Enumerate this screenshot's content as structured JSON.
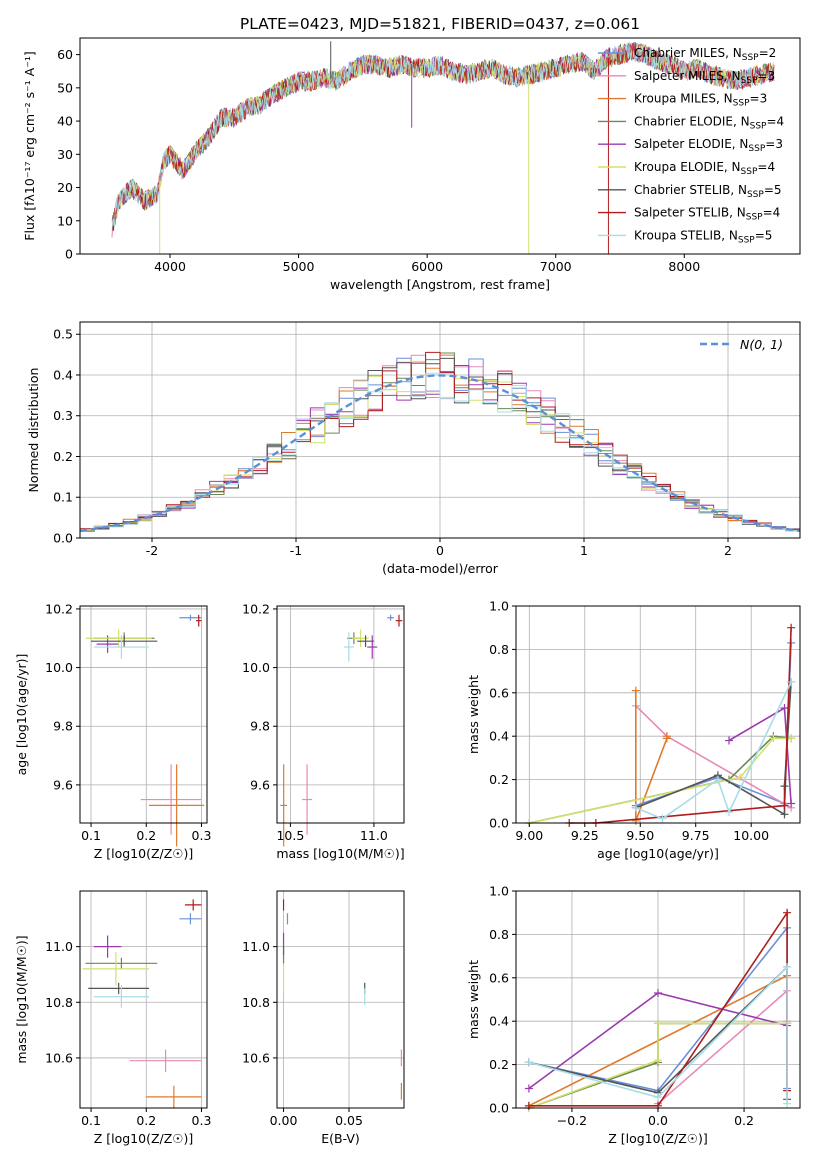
{
  "title": "PLATE=0423, MJD=51821, FIBERID=0437, z=0.061",
  "legend_top": [
    {
      "label": "Chabrier MILES, N",
      "sub": "SSP",
      "tail": "=2",
      "color": "#6a8fd8"
    },
    {
      "label": "Salpeter MILES, N",
      "sub": "SSP",
      "tail": "=3",
      "color": "#e889b8"
    },
    {
      "label": "Kroupa MILES, N",
      "sub": "SSP",
      "tail": "=3",
      "color": "#e0792b"
    },
    {
      "label": "Chabrier ELODIE, N",
      "sub": "SSP",
      "tail": "=4",
      "color": "#6a8a55"
    },
    {
      "label": "Salpeter ELODIE, N",
      "sub": "SSP",
      "tail": "=3",
      "color": "#9b3bb0"
    },
    {
      "label": "Kroupa ELODIE, N",
      "sub": "SSP",
      "tail": "=4",
      "color": "#d4e06a"
    },
    {
      "label": "Chabrier STELIB, N",
      "sub": "SSP",
      "tail": "=5",
      "color": "#555555"
    },
    {
      "label": "Salpeter STELIB, N",
      "sub": "SSP",
      "tail": "=4",
      "color": "#b01c1c"
    },
    {
      "label": "Kroupa STELIB, N",
      "sub": "SSP",
      "tail": "=5",
      "color": "#a6dde8"
    }
  ],
  "legend_hist": "N(0, 1)",
  "chart_data": [
    {
      "id": "spectrum",
      "type": "line",
      "xlabel": "wavelength [Angstrom, rest frame]",
      "ylabel": "Flux [fλ10⁻¹⁷ erg cm⁻² s⁻¹ A⁻¹]",
      "xlim": [
        3300,
        8900
      ],
      "ylim": [
        0,
        65
      ],
      "xticks": [
        4000,
        5000,
        6000,
        7000,
        8000
      ],
      "yticks": [
        0,
        10,
        20,
        30,
        40,
        50,
        60
      ],
      "x": [
        3550,
        3600,
        3700,
        3800,
        3900,
        3950,
        4000,
        4100,
        4200,
        4300,
        4400,
        4500,
        4600,
        4700,
        4800,
        4900,
        5000,
        5100,
        5200,
        5300,
        5400,
        5500,
        5600,
        5700,
        5800,
        5900,
        6000,
        6100,
        6200,
        6300,
        6400,
        6500,
        6600,
        6700,
        6800,
        6900,
        7000,
        7100,
        7200,
        7300,
        7400,
        7500,
        7600,
        7700,
        7800,
        7900,
        8000,
        8100,
        8200,
        8300,
        8400,
        8500,
        8600,
        8700
      ],
      "y": [
        8,
        16,
        20,
        16,
        18,
        28,
        30,
        25,
        31,
        35,
        41,
        41,
        44,
        45,
        48,
        50,
        52,
        52,
        53,
        52,
        55,
        57,
        57,
        56,
        57,
        56,
        56,
        57,
        55,
        54,
        55,
        56,
        54,
        53,
        54,
        55,
        56,
        57,
        58,
        55,
        59,
        60,
        61,
        60,
        58,
        57,
        55,
        56,
        54,
        53,
        52,
        53,
        54,
        55
      ]
    },
    {
      "id": "residual-histogram",
      "type": "line",
      "xlabel": "(data-model)/error",
      "ylabel": "Normed distribution",
      "xlim": [
        -2.5,
        2.5
      ],
      "ylim": [
        0,
        0.53
      ],
      "xticks": [
        -2,
        -1,
        0,
        1,
        2
      ],
      "yticks": [
        0.0,
        0.1,
        0.2,
        0.3,
        0.4,
        0.5
      ],
      "bin_width": 0.1,
      "reference": "normal(0,1)",
      "series_note": "one step histogram per model, colors as legend_top"
    },
    {
      "id": "age-vs-Z",
      "type": "scatter",
      "xlabel": "Z [log10(Z/Z☉)]",
      "ylabel": "age  [log10(age/yr)]",
      "xlim": [
        0.08,
        0.31
      ],
      "ylim": [
        9.47,
        10.21
      ],
      "xticks": [
        0.1,
        0.2,
        0.3
      ],
      "yticks": [
        9.6,
        9.8,
        10.0,
        10.2
      ],
      "points": [
        {
          "x": 0.28,
          "y": 10.17,
          "xerr": 0.02,
          "yerr": 0.01,
          "c": 0
        },
        {
          "x": 0.245,
          "y": 9.55,
          "xerr": 0.055,
          "yerr": 0.12,
          "c": 1
        },
        {
          "x": 0.255,
          "y": 9.53,
          "xerr": 0.05,
          "yerr": 0.14,
          "c": 2
        },
        {
          "x": 0.16,
          "y": 10.1,
          "xerr": 0.055,
          "yerr": 0.02,
          "c": 3
        },
        {
          "x": 0.13,
          "y": 10.08,
          "xerr": 0.02,
          "yerr": 0.03,
          "c": 4
        },
        {
          "x": 0.15,
          "y": 10.1,
          "xerr": 0.06,
          "yerr": 0.03,
          "c": 5
        },
        {
          "x": 0.16,
          "y": 10.09,
          "xerr": 0.06,
          "yerr": 0.02,
          "c": 6
        },
        {
          "x": 0.295,
          "y": 10.16,
          "xerr": 0.005,
          "yerr": 0.02,
          "c": 7
        },
        {
          "x": 0.155,
          "y": 10.07,
          "xerr": 0.05,
          "yerr": 0.04,
          "c": 8
        }
      ]
    },
    {
      "id": "age-vs-mass",
      "type": "scatter",
      "xlabel": "mass [log10(M/M☉)]",
      "ylabel": "",
      "xlim": [
        10.42,
        11.18
      ],
      "ylim": [
        9.47,
        10.21
      ],
      "xticks": [
        10.5,
        11.0
      ],
      "yticks": [
        9.6,
        9.8,
        10.0,
        10.2
      ],
      "points": [
        {
          "x": 11.1,
          "y": 10.17,
          "xerr": 0.02,
          "yerr": 0.01,
          "c": 0
        },
        {
          "x": 10.6,
          "y": 9.55,
          "xerr": 0.03,
          "yerr": 0.12,
          "c": 1
        },
        {
          "x": 10.46,
          "y": 9.53,
          "xerr": 0.02,
          "yerr": 0.14,
          "c": 2
        },
        {
          "x": 10.88,
          "y": 10.1,
          "xerr": 0.04,
          "yerr": 0.02,
          "c": 3
        },
        {
          "x": 10.99,
          "y": 10.07,
          "xerr": 0.03,
          "yerr": 0.04,
          "c": 4
        },
        {
          "x": 10.92,
          "y": 10.1,
          "xerr": 0.05,
          "yerr": 0.03,
          "c": 5
        },
        {
          "x": 10.95,
          "y": 10.09,
          "xerr": 0.05,
          "yerr": 0.02,
          "c": 6
        },
        {
          "x": 11.15,
          "y": 10.16,
          "xerr": 0.02,
          "yerr": 0.02,
          "c": 7
        },
        {
          "x": 10.85,
          "y": 10.07,
          "xerr": 0.03,
          "yerr": 0.05,
          "c": 8
        }
      ]
    },
    {
      "id": "weight-vs-age",
      "type": "line",
      "xlabel": "age  [log10(age/yr)]",
      "ylabel": "mass weight",
      "xlim": [
        8.94,
        10.22
      ],
      "ylim": [
        0,
        1.0
      ],
      "xticks": [
        9.0,
        9.25,
        9.5,
        9.75,
        10.0
      ],
      "yticks": [
        0.0,
        0.2,
        0.4,
        0.6,
        0.8,
        1.0
      ],
      "series": [
        {
          "c": 0,
          "x": [
            9.48,
            9.85,
            10.15,
            10.18
          ],
          "y": [
            0.08,
            0.21,
            0.09,
            0.83
          ]
        },
        {
          "c": 1,
          "x": [
            9.48,
            9.62,
            10.18
          ],
          "y": [
            0.54,
            0.4,
            0.07
          ]
        },
        {
          "c": 2,
          "x": [
            9.48,
            9.48,
            9.62,
            9.62
          ],
          "y": [
            0.61,
            0.01,
            0.39,
            0.4
          ]
        },
        {
          "c": 3,
          "x": [
            9.0,
            9.9,
            10.1,
            10.18
          ],
          "y": [
            0.0,
            0.2,
            0.4,
            0.39
          ]
        },
        {
          "c": 4,
          "x": [
            9.9,
            10.15,
            10.18
          ],
          "y": [
            0.38,
            0.53,
            0.09
          ]
        },
        {
          "c": 5,
          "x": [
            9.0,
            9.95,
            10.1,
            10.18
          ],
          "y": [
            0.0,
            0.21,
            0.39,
            0.39
          ]
        },
        {
          "c": 6,
          "x": [
            9.48,
            9.85,
            10.15,
            10.15,
            10.18
          ],
          "y": [
            0.07,
            0.22,
            0.04,
            0.17,
            0.65
          ]
        },
        {
          "c": 7,
          "x": [
            9.18,
            9.3,
            10.15,
            10.18
          ],
          "y": [
            0.0,
            0.0,
            0.08,
            0.9
          ]
        },
        {
          "c": 8,
          "x": [
            9.48,
            9.6,
            9.85,
            9.9,
            10.18
          ],
          "y": [
            0.07,
            0.02,
            0.2,
            0.05,
            0.65
          ]
        }
      ]
    },
    {
      "id": "mass-vs-Z",
      "type": "scatter",
      "xlabel": "Z [log10(Z/Z☉)]",
      "ylabel": "mass [log10(M/M☉)]",
      "xlim": [
        0.08,
        0.31
      ],
      "ylim": [
        10.42,
        11.2
      ],
      "xticks": [
        0.1,
        0.2,
        0.3
      ],
      "yticks": [
        10.6,
        10.8,
        11.0
      ],
      "points": [
        {
          "x": 0.28,
          "y": 11.1,
          "xerr": 0.02,
          "yerr": 0.02,
          "c": 0
        },
        {
          "x": 0.235,
          "y": 10.59,
          "xerr": 0.065,
          "yerr": 0.04,
          "c": 1
        },
        {
          "x": 0.25,
          "y": 10.46,
          "xerr": 0.05,
          "yerr": 0.04,
          "c": 2
        },
        {
          "x": 0.155,
          "y": 10.94,
          "xerr": 0.065,
          "yerr": 0.02,
          "c": 3
        },
        {
          "x": 0.13,
          "y": 11.0,
          "xerr": 0.025,
          "yerr": 0.04,
          "c": 4
        },
        {
          "x": 0.145,
          "y": 10.92,
          "xerr": 0.06,
          "yerr": 0.06,
          "c": 5
        },
        {
          "x": 0.15,
          "y": 10.85,
          "xerr": 0.055,
          "yerr": 0.02,
          "c": 6
        },
        {
          "x": 0.285,
          "y": 11.15,
          "xerr": 0.015,
          "yerr": 0.02,
          "c": 7
        },
        {
          "x": 0.155,
          "y": 10.82,
          "xerr": 0.05,
          "yerr": 0.04,
          "c": 8
        }
      ]
    },
    {
      "id": "mass-vs-EBV",
      "type": "scatter",
      "xlabel": "E(B-V)",
      "ylabel": "",
      "xlim": [
        -0.005,
        0.092
      ],
      "ylim": [
        10.42,
        11.2
      ],
      "xticks": [
        0.0,
        0.05
      ],
      "yticks": [
        10.6,
        10.8,
        11.0
      ],
      "points": [
        {
          "x": 0.003,
          "y": 11.1,
          "yerr": 0.02,
          "c": 0
        },
        {
          "x": 0.09,
          "y": 10.6,
          "yerr": 0.03,
          "c": 1
        },
        {
          "x": 0.09,
          "y": 10.48,
          "yerr": 0.03,
          "c": 2
        },
        {
          "x": 0.0,
          "y": 10.97,
          "yerr": 0.03,
          "c": 3
        },
        {
          "x": 0.0,
          "y": 11.01,
          "yerr": 0.04,
          "c": 4
        },
        {
          "x": 0.0,
          "y": 10.88,
          "yerr": 0.05,
          "c": 5
        },
        {
          "x": 0.062,
          "y": 10.85,
          "yerr": 0.02,
          "c": 6
        },
        {
          "x": 0.0,
          "y": 11.15,
          "yerr": 0.02,
          "c": 7
        },
        {
          "x": 0.062,
          "y": 10.82,
          "yerr": 0.03,
          "c": 8
        }
      ]
    },
    {
      "id": "weight-vs-Z",
      "type": "line",
      "xlabel": "Z [log10(Z/Z☉)]",
      "ylabel": "mass weight",
      "xlim": [
        -0.33,
        0.33
      ],
      "ylim": [
        0,
        1.0
      ],
      "xticks": [
        -0.2,
        0.0,
        0.2
      ],
      "yticks": [
        0.0,
        0.2,
        0.4,
        0.6,
        0.8,
        1.0
      ],
      "series": [
        {
          "c": 0,
          "x": [
            -0.3,
            0.0,
            0.3,
            0.3
          ],
          "y": [
            0.21,
            0.08,
            0.83,
            0.09
          ]
        },
        {
          "c": 1,
          "x": [
            0.0,
            0.3,
            0.3
          ],
          "y": [
            0.02,
            0.54,
            0.4
          ]
        },
        {
          "c": 2,
          "x": [
            -0.3,
            0.3,
            0.3
          ],
          "y": [
            0.01,
            0.61,
            0.39
          ]
        },
        {
          "c": 3,
          "x": [
            -0.3,
            0.0,
            0.0,
            0.3
          ],
          "y": [
            0.0,
            0.21,
            0.39,
            0.39
          ]
        },
        {
          "c": 4,
          "x": [
            -0.3,
            0.0,
            0.3
          ],
          "y": [
            0.09,
            0.53,
            0.38
          ]
        },
        {
          "c": 5,
          "x": [
            -0.3,
            0.0,
            0.0,
            0.3
          ],
          "y": [
            0.0,
            0.22,
            0.39,
            0.39
          ]
        },
        {
          "c": 6,
          "x": [
            -0.3,
            0.0,
            0.3,
            0.3
          ],
          "y": [
            0.21,
            0.07,
            0.65,
            0.04
          ]
        },
        {
          "c": 7,
          "x": [
            -0.3,
            0.0,
            0.3,
            0.3
          ],
          "y": [
            0.01,
            0.01,
            0.9,
            0.08
          ]
        },
        {
          "c": 8,
          "x": [
            -0.3,
            0.0,
            0.3,
            0.3
          ],
          "y": [
            0.21,
            0.05,
            0.65,
            0.02
          ]
        }
      ]
    }
  ]
}
